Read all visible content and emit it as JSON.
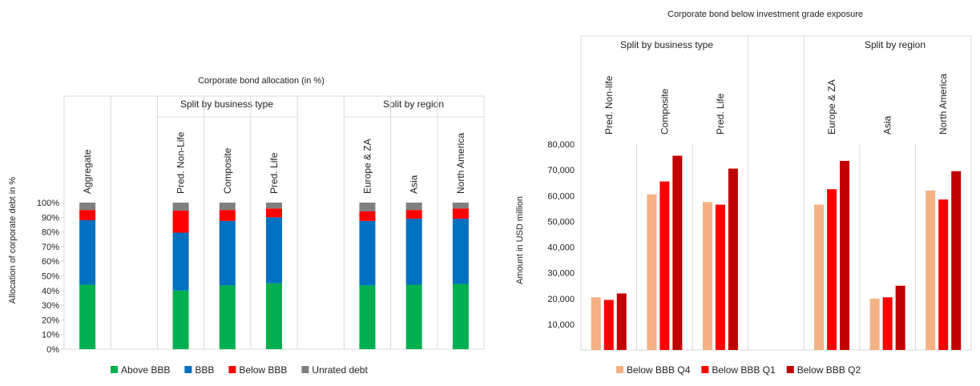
{
  "chart_data": [
    {
      "type": "bar",
      "stacked": true,
      "title": "Corporate bond allocation (in %)",
      "ylabel": "Allocation of corporate debt in %",
      "ylim": [
        0,
        100
      ],
      "yticks": [
        "0%",
        "10%",
        "20%",
        "30%",
        "40%",
        "50%",
        "60%",
        "70%",
        "80%",
        "90%",
        "100%"
      ],
      "group_labels": [
        "Split by business type",
        "Split by region"
      ],
      "categories": [
        "Aggregate",
        "",
        "Pred. Non-Life",
        "Composite",
        "Pred. Life",
        "",
        "Europe & ZA",
        "Asia",
        "North America"
      ],
      "series": [
        {
          "name": "Above BBB",
          "color": "#00b050",
          "values": [
            44,
            null,
            40,
            43.5,
            45,
            null,
            43.5,
            44,
            44.5
          ]
        },
        {
          "name": "BBB",
          "color": "#0070c0",
          "values": [
            44,
            null,
            39.5,
            44,
            45,
            null,
            44,
            45,
            44.5
          ]
        },
        {
          "name": "Below BBB",
          "color": "#ff0000",
          "values": [
            7,
            null,
            15,
            7.5,
            6,
            null,
            6.5,
            6,
            7
          ]
        },
        {
          "name": "Unrated debt",
          "color": "#808080",
          "values": [
            5,
            null,
            5.5,
            5,
            4,
            null,
            6,
            5,
            4
          ]
        }
      ],
      "grid": false,
      "legend": "bottom"
    },
    {
      "type": "bar",
      "title": "Corporate bond below investment grade exposure",
      "ylabel": "Amount in USD million",
      "ylim": [
        0,
        80000
      ],
      "yticks": [
        "10,000",
        "20,000",
        "30,000",
        "40,000",
        "50,000",
        "60,000",
        "70,000",
        "80,000"
      ],
      "group_labels": [
        "Split by business type",
        "Split by region"
      ],
      "categories": [
        "Pred. Non-life",
        "Composite",
        "Pred. Life",
        "",
        "Europe & ZA",
        "Asia",
        "North America"
      ],
      "series": [
        {
          "name": "Below BBB Q4",
          "color": "#f4b183",
          "values": [
            20500,
            60500,
            57500,
            null,
            56500,
            20000,
            62000
          ]
        },
        {
          "name": "Below BBB Q1",
          "color": "#ff0000",
          "values": [
            19500,
            65500,
            56500,
            null,
            62500,
            20500,
            58500
          ]
        },
        {
          "name": "Below BBB Q2",
          "color": "#c00000",
          "values": [
            22000,
            75500,
            70500,
            null,
            73500,
            25000,
            69500
          ]
        }
      ],
      "grid": false,
      "legend": "bottom"
    }
  ]
}
